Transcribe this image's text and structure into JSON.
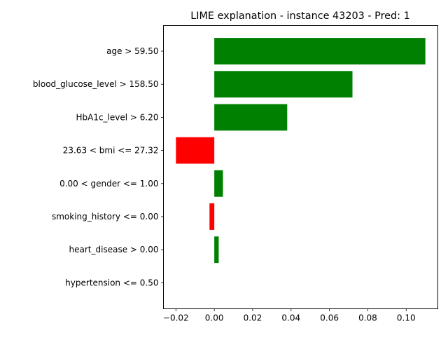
{
  "chart_data": {
    "type": "bar",
    "orientation": "horizontal",
    "title": "LIME explanation - instance 43203 - Pred: 1",
    "xlabel": "",
    "ylabel": "",
    "xlim": [
      -0.0265,
      0.1165
    ],
    "grid": false,
    "legend": "none",
    "positive_color": "#008000",
    "negative_color": "#ff0000",
    "categories": [
      "age > 59.50",
      "blood_glucose_level > 158.50",
      "HbA1c_level > 6.20",
      "23.63 < bmi <= 27.32",
      "0.00 < gender <= 1.00",
      "smoking_history <= 0.00",
      "heart_disease > 0.00",
      "hypertension <= 0.50"
    ],
    "values": [
      0.11,
      0.072,
      0.038,
      -0.02,
      0.0045,
      -0.0025,
      0.0023,
      0.0
    ],
    "x_ticks": [
      -0.02,
      0.0,
      0.02,
      0.04,
      0.06,
      0.08,
      0.1
    ],
    "x_tick_labels": [
      "−0.02",
      "0.00",
      "0.02",
      "0.04",
      "0.06",
      "0.08",
      "0.10"
    ]
  }
}
